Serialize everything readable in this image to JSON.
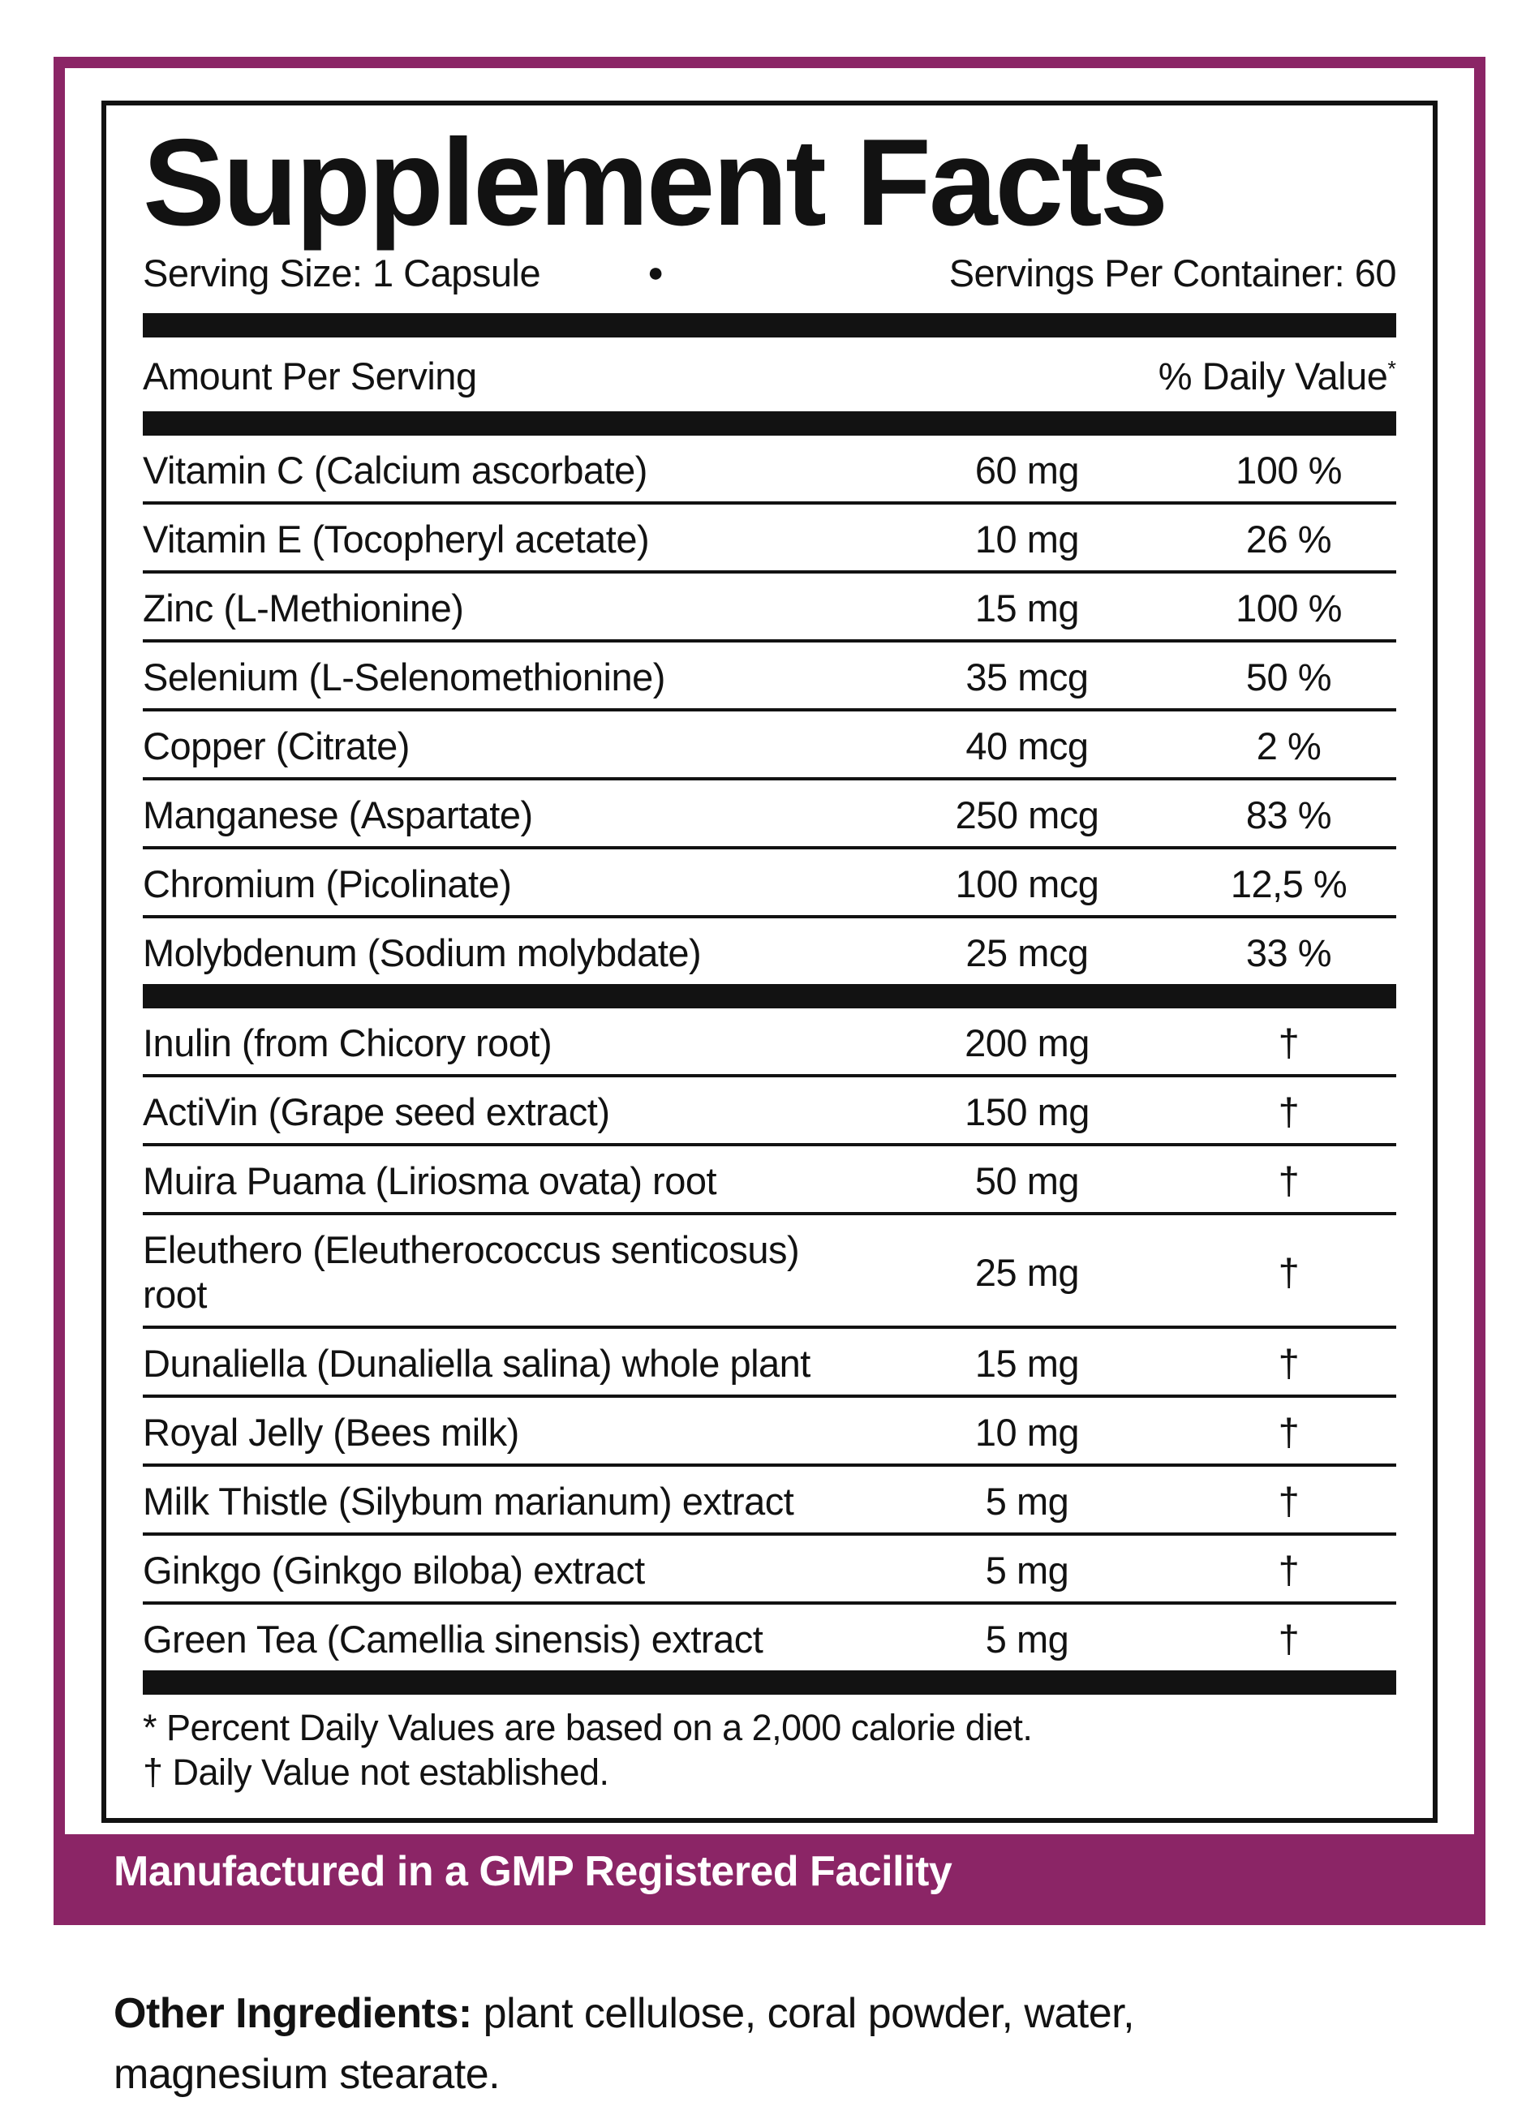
{
  "colors": {
    "purple": "#8b2566",
    "ink": "#121212"
  },
  "title": "Supplement Facts",
  "serving": {
    "size": "Serving Size: 1 Capsule",
    "dot": "●",
    "per_container": "Servings Per Container: 60"
  },
  "header": {
    "amount_label": "Amount Per Serving",
    "dv_label": "% Daily Value",
    "dv_star": "*"
  },
  "rows_top": [
    {
      "name": "Vitamin C (Calcium ascorbate)",
      "amount": "60 mg",
      "dv": "100 %"
    },
    {
      "name": "Vitamin E (Tocopheryl acetate)",
      "amount": "10 mg",
      "dv": "26 %"
    },
    {
      "name": "Zinc (L-Methionine)",
      "amount": "15 mg",
      "dv": "100 %"
    },
    {
      "name": "Selenium (L-Selenomethionine)",
      "amount": "35 mcg",
      "dv": "50 %"
    },
    {
      "name": "Copper (Citrate)",
      "amount": "40 mcg",
      "dv": "2 %"
    },
    {
      "name": "Manganese (Aspartate)",
      "amount": "250 mcg",
      "dv": "83 %"
    },
    {
      "name": "Chromium (Picolinate)",
      "amount": "100 mcg",
      "dv": "12,5 %"
    },
    {
      "name": "Molybdenum (Sodium molybdate)",
      "amount": "25 mcg",
      "dv": "33 %"
    }
  ],
  "rows_bottom": [
    {
      "name": "Inulin (from Chicory root)",
      "amount": "200 mg",
      "dv": "†"
    },
    {
      "name": "ActiVin (Grape seed extract)",
      "amount": "150 mg",
      "dv": "†"
    },
    {
      "name": "Muira Puama (Liriosma ovata) root",
      "amount": "50 mg",
      "dv": "†"
    },
    {
      "name": "Eleuthero (Eleutherococcus senticosus) root",
      "amount": "25 mg",
      "dv": "†"
    },
    {
      "name": "Dunaliella (Dunaliella salina) whole plant",
      "amount": "15 mg",
      "dv": "†"
    },
    {
      "name": "Royal Jelly (Bees milk)",
      "amount": "10 mg",
      "dv": "†"
    },
    {
      "name": "Milk Thistle (Silybum marianum) extract",
      "amount": "5 mg",
      "dv": "†"
    },
    {
      "name": "Ginkgo (Ginkgo вiloba) extract",
      "amount": "5 mg",
      "dv": "†"
    },
    {
      "name": "Green Tea (Camellia sinensis) extract",
      "amount": "5 mg",
      "dv": "†"
    }
  ],
  "footnotes": {
    "line1": "* Percent Daily Values are based on a 2,000 calorie diet.",
    "line2": "† Daily Value not established."
  },
  "banner": "Manufactured in a GMP Registered Facility",
  "other_ingredients": {
    "label": "Other Ingredients:",
    "text": " plant cellulose, coral powder, water, magnesium stearate."
  }
}
